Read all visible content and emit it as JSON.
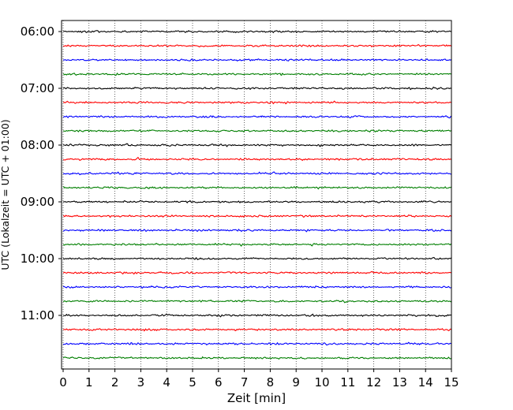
{
  "chart_data": {
    "type": "line",
    "title": "",
    "xlabel": "Zeit  [min]",
    "ylabel": "UTC (Lokalzeit = UTC + 01:00)",
    "xlim": [
      0,
      15
    ],
    "x_ticks": [
      "0",
      "1",
      "2",
      "3",
      "4",
      "5",
      "6",
      "7",
      "8",
      "9",
      "10",
      "11",
      "12",
      "13",
      "14",
      "15"
    ],
    "y_ticks": [
      "06:00",
      "07:00",
      "08:00",
      "09:00",
      "10:00",
      "11:00"
    ],
    "grid": "vertical dotted",
    "legend": "none",
    "trace_interval_min": 15,
    "trace_colors": [
      "#000000",
      "#ff0000",
      "#0000ff",
      "#007f00"
    ],
    "traces": [
      {
        "start": "06:00",
        "color": "#000000"
      },
      {
        "start": "06:15",
        "color": "#ff0000"
      },
      {
        "start": "06:30",
        "color": "#0000ff"
      },
      {
        "start": "06:45",
        "color": "#007f00"
      },
      {
        "start": "07:00",
        "color": "#000000"
      },
      {
        "start": "07:15",
        "color": "#ff0000"
      },
      {
        "start": "07:30",
        "color": "#0000ff"
      },
      {
        "start": "07:45",
        "color": "#007f00"
      },
      {
        "start": "08:00",
        "color": "#000000"
      },
      {
        "start": "08:15",
        "color": "#ff0000"
      },
      {
        "start": "08:30",
        "color": "#0000ff"
      },
      {
        "start": "08:45",
        "color": "#007f00"
      },
      {
        "start": "09:00",
        "color": "#000000"
      },
      {
        "start": "09:15",
        "color": "#ff0000"
      },
      {
        "start": "09:30",
        "color": "#0000ff"
      },
      {
        "start": "09:45",
        "color": "#007f00"
      },
      {
        "start": "10:00",
        "color": "#000000"
      },
      {
        "start": "10:15",
        "color": "#ff0000"
      },
      {
        "start": "10:30",
        "color": "#0000ff"
      },
      {
        "start": "10:45",
        "color": "#007f00"
      },
      {
        "start": "11:00",
        "color": "#000000"
      },
      {
        "start": "11:15",
        "color": "#ff0000"
      },
      {
        "start": "11:30",
        "color": "#0000ff"
      },
      {
        "start": "11:45",
        "color": "#007f00"
      }
    ]
  }
}
